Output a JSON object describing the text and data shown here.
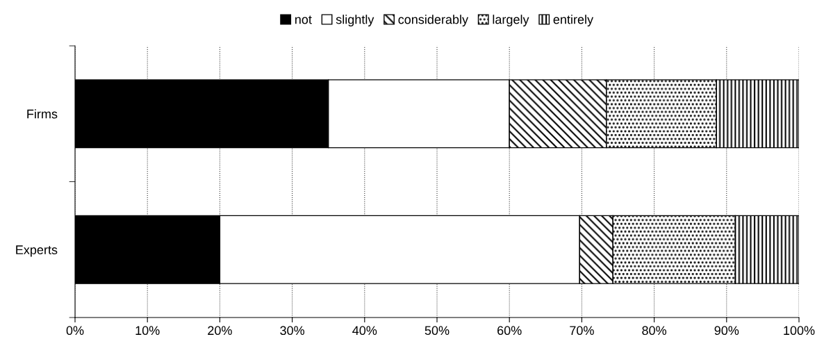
{
  "chart_data": {
    "type": "bar",
    "orientation": "horizontal",
    "stacked": true,
    "categories": [
      "Firms",
      "Experts"
    ],
    "series": [
      {
        "name": "not",
        "color": "#000000",
        "values": [
          35,
          20
        ]
      },
      {
        "name": "slightly",
        "color": "#ffffff",
        "values": [
          25,
          49.7
        ]
      },
      {
        "name": "considerably",
        "color": "#000000",
        "values": [
          13.4,
          4.6
        ]
      },
      {
        "name": "largely",
        "color": "#000000",
        "values": [
          15.2,
          16.9
        ]
      },
      {
        "name": "entirely",
        "color": "#000000",
        "values": [
          11.4,
          8.8
        ]
      }
    ],
    "xlim": [
      0,
      100
    ],
    "xticks": [
      {
        "value": 0,
        "label": "0%"
      },
      {
        "value": 10,
        "label": "10%"
      },
      {
        "value": 20,
        "label": "20%"
      },
      {
        "value": 30,
        "label": "30%"
      },
      {
        "value": 40,
        "label": "40%"
      },
      {
        "value": 50,
        "label": "50%"
      },
      {
        "value": 60,
        "label": "60%"
      },
      {
        "value": 70,
        "label": "70%"
      },
      {
        "value": 80,
        "label": "80%"
      },
      {
        "value": 90,
        "label": "90%"
      },
      {
        "value": 100,
        "label": "100%"
      }
    ],
    "grid": "x",
    "legend": "top"
  }
}
